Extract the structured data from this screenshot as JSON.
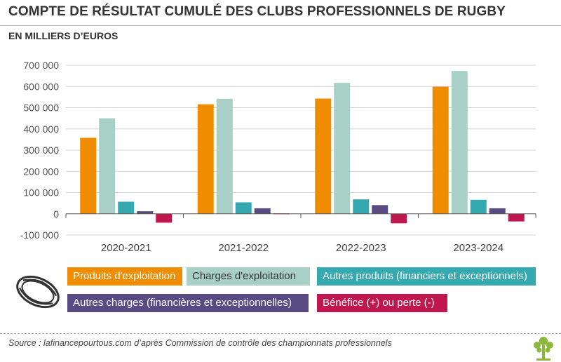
{
  "header": {
    "title": "COMPTE DE RÉSULTAT CUMULÉ DES CLUBS PROFESSIONNELS DE RUGBY",
    "subtitle": "EN MILLIERS D’EUROS"
  },
  "colors": {
    "produits": "#F08C00",
    "charges": "#A8D0C6",
    "autres_produits": "#35A9B0",
    "autres_charges": "#5A4A84",
    "benefice": "#C0174F",
    "tree": "#8BB83A"
  },
  "icons": {
    "ball": "rugby-ball-icon",
    "logo": "tree-icon"
  },
  "chart_data": {
    "type": "bar",
    "categories": [
      "2020-2021",
      "2021-2022",
      "2022-2023",
      "2023-2024"
    ],
    "ylim": [
      -100000,
      700000
    ],
    "yticks": [
      -100000,
      0,
      100000,
      200000,
      300000,
      400000,
      500000,
      600000,
      700000
    ],
    "ytick_labels": [
      "-100 000",
      "0",
      "100 000",
      "200 000",
      "300 000",
      "400 000",
      "500 000",
      "600 000",
      "700 000"
    ],
    "grid": true,
    "legend_position": "bottom",
    "series": [
      {
        "name": "Produits d'exploitation",
        "values": [
          358000,
          516000,
          543000,
          599000
        ]
      },
      {
        "name": "Charges d'exploitation",
        "values": [
          450000,
          542000,
          617000,
          673000
        ]
      },
      {
        "name": "Autres produits (financiers et exceptionnels)",
        "values": [
          57000,
          54000,
          68000,
          66000
        ]
      },
      {
        "name": "Autres charges (financières et exceptionnelles)",
        "values": [
          12000,
          26000,
          41000,
          26000
        ]
      },
      {
        "name": "Bénéfice (+) ou perte (-)",
        "values": [
          -42000,
          -2000,
          -45000,
          -36000
        ]
      }
    ]
  },
  "legend": [
    {
      "label": "Produits d'exploitation"
    },
    {
      "label": "Charges d'exploitation"
    },
    {
      "label": "Autres produits (financiers et exceptionnels)"
    },
    {
      "label": "Autres charges (financières et exceptionnelles)"
    },
    {
      "label": "Bénéfice (+) ou perte (-)"
    }
  ],
  "footer": {
    "source": "Source : lafinancepourtous.com d’après Commission de contrôle des championnats professionnels"
  }
}
